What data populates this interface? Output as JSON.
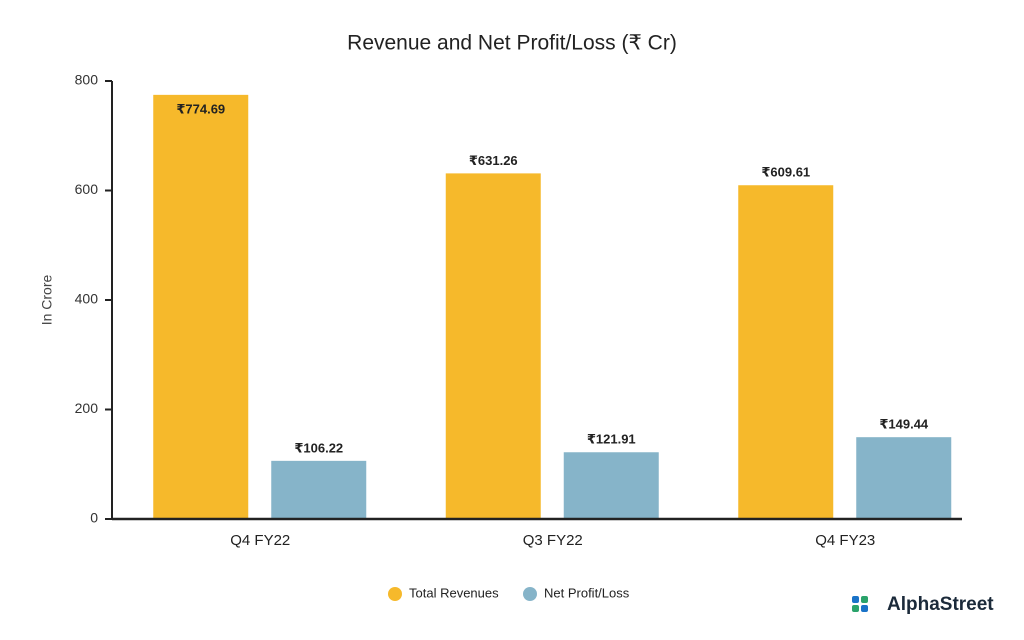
{
  "chart_data": {
    "type": "bar",
    "title": "Revenue and Net Profit/Loss (₹ Cr)",
    "y_label": "In Crore",
    "categories": [
      "Q4 FY22",
      "Q3 FY22",
      "Q4 FY23"
    ],
    "series": [
      {
        "name": "Total Revenues",
        "color": "#f6b92b",
        "values": [
          774.69,
          631.26,
          609.61
        ],
        "value_labels": [
          "₹774.69",
          "₹631.26",
          "₹609.61"
        ]
      },
      {
        "name": "Net Profit/Loss",
        "color": "#86b4c9",
        "values": [
          106.22,
          121.91,
          149.44
        ],
        "value_labels": [
          "₹106.22",
          "₹121.91",
          "₹149.44"
        ]
      }
    ],
    "ylim": [
      0,
      800
    ],
    "yticks": [
      0,
      200,
      400,
      600,
      800
    ],
    "grid": false,
    "legend": "bottom",
    "brand": "AlphaStreet"
  }
}
